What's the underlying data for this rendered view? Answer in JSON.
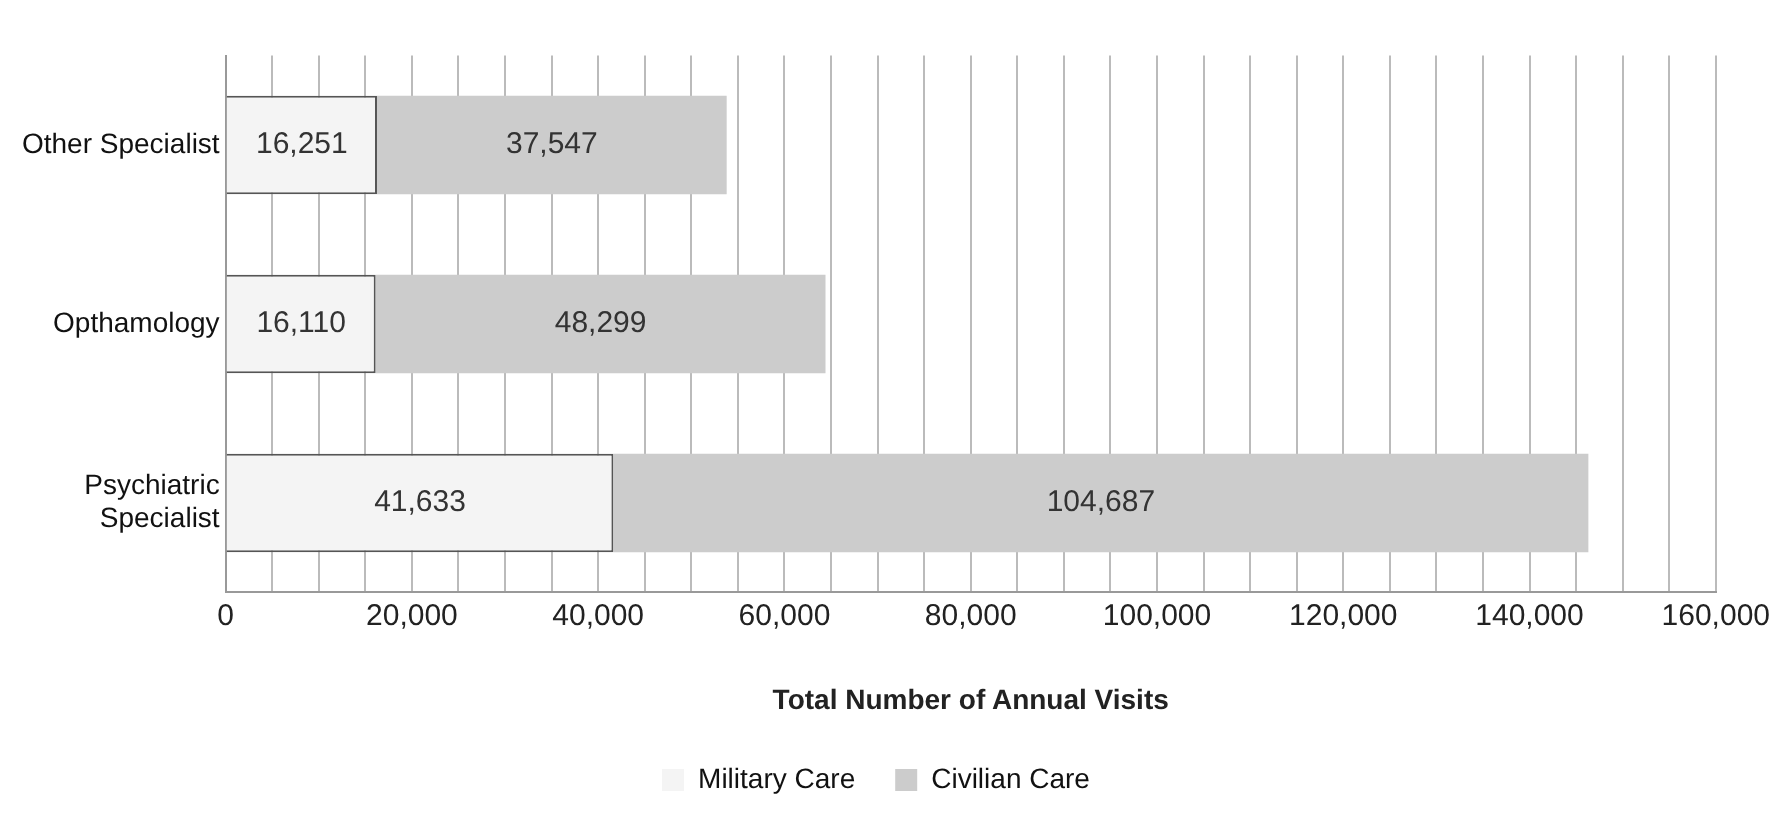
{
  "chart_data": {
    "type": "bar",
    "orientation": "horizontal",
    "stacked": true,
    "xlabel": "Total Number of Annual Visits",
    "categories": [
      "Other Specialist",
      "Opthamology",
      "Psychiatric Specialist"
    ],
    "series": [
      {
        "name": "Military Care",
        "color": "#f4f4f4",
        "values": [
          16251,
          16110,
          41633
        ],
        "value_labels": [
          "16,251",
          "16,110",
          "41,633"
        ]
      },
      {
        "name": "Civilian Care",
        "color": "#cccccc",
        "values": [
          37547,
          48299,
          104687
        ],
        "value_labels": [
          "37,547",
          "48,299",
          "104,687"
        ]
      }
    ],
    "xlim": [
      0,
      160000
    ],
    "xticks": [
      0,
      {
        "value": 5000,
        "label": null
      },
      {
        "value": 10000,
        "label": null
      },
      {
        "value": 15000,
        "label": null
      },
      {
        "value": 20000,
        "label": "20,000"
      },
      {
        "value": 25000,
        "label": null
      },
      {
        "value": 30000,
        "label": null
      },
      {
        "value": 35000,
        "label": null
      },
      {
        "value": 40000,
        "label": "40,000"
      },
      {
        "value": 45000,
        "label": null
      },
      {
        "value": 50000,
        "label": null
      },
      {
        "value": 55000,
        "label": null
      },
      {
        "value": 60000,
        "label": "60,000"
      },
      {
        "value": 65000,
        "label": null
      },
      {
        "value": 70000,
        "label": null
      },
      {
        "value": 75000,
        "label": null
      },
      {
        "value": 80000,
        "label": "80,000"
      },
      {
        "value": 85000,
        "label": null
      },
      {
        "value": 90000,
        "label": null
      },
      {
        "value": 95000,
        "label": null
      },
      {
        "value": 100000,
        "label": "100,000"
      },
      {
        "value": 105000,
        "label": null
      },
      {
        "value": 110000,
        "label": null
      },
      {
        "value": 115000,
        "label": null
      },
      {
        "value": 120000,
        "label": "120,000"
      },
      {
        "value": 125000,
        "label": null
      },
      {
        "value": 130000,
        "label": null
      },
      {
        "value": 135000,
        "label": null
      },
      {
        "value": 140000,
        "label": "140,000"
      },
      {
        "value": 145000,
        "label": null
      },
      {
        "value": 150000,
        "label": null
      },
      {
        "value": 155000,
        "label": null
      },
      {
        "value": 160000,
        "label": "160,000"
      }
    ],
    "grid": "x",
    "legend": "bottom"
  }
}
